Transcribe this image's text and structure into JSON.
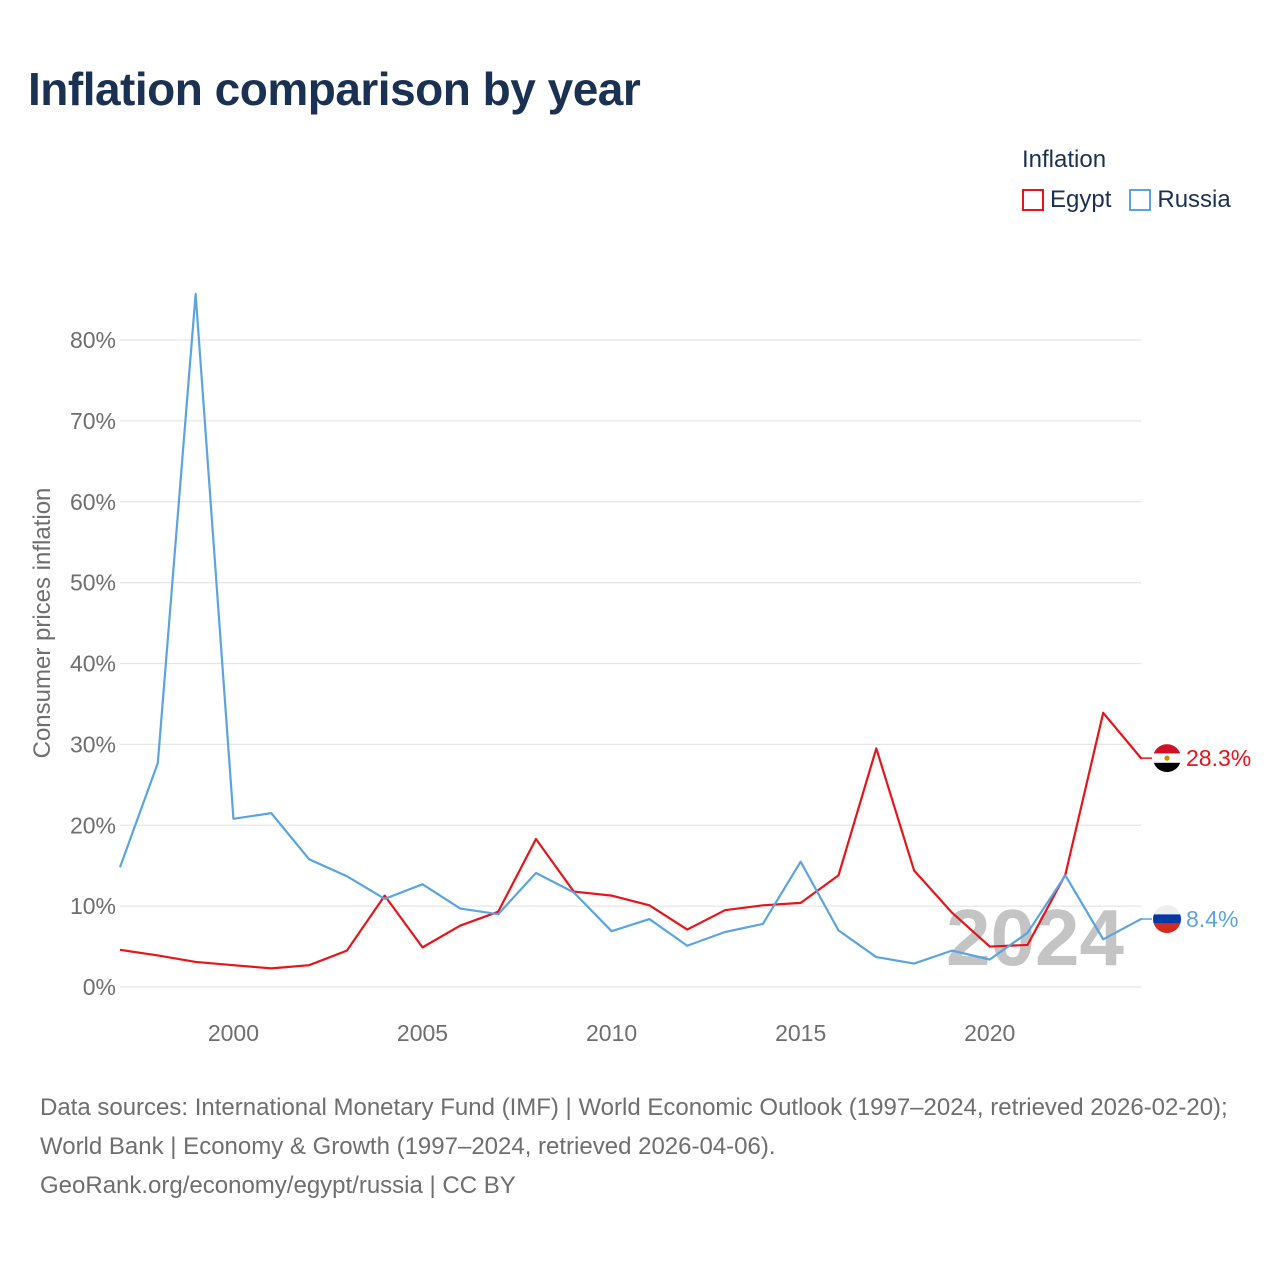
{
  "chart_data": {
    "type": "line",
    "title": "Inflation comparison by year",
    "xlabel": "",
    "ylabel": "Consumer prices inflation",
    "xlim": [
      1997,
      2024
    ],
    "ylim": [
      0,
      85
    ],
    "y_ticks": [
      0,
      10,
      20,
      30,
      40,
      50,
      60,
      70,
      80
    ],
    "y_tick_labels": [
      "0%",
      "10%",
      "20%",
      "30%",
      "40%",
      "50%",
      "60%",
      "70%",
      "80%"
    ],
    "x_ticks": [
      2000,
      2005,
      2010,
      2015,
      2020
    ],
    "x_tick_labels": [
      "2000",
      "2005",
      "2010",
      "2015",
      "2020"
    ],
    "grid": true,
    "legend_title": "Inflation",
    "legend_position": "top-right",
    "x": [
      1997,
      1998,
      1999,
      2000,
      2001,
      2002,
      2003,
      2004,
      2005,
      2006,
      2007,
      2008,
      2009,
      2010,
      2011,
      2012,
      2013,
      2014,
      2015,
      2016,
      2017,
      2018,
      2019,
      2020,
      2021,
      2022,
      2023,
      2024
    ],
    "series": [
      {
        "name": "Egypt",
        "color": "#e8141b",
        "end_label": "28.3%",
        "values": [
          4.6,
          3.9,
          3.1,
          2.7,
          2.3,
          2.7,
          4.5,
          11.3,
          4.9,
          7.6,
          9.3,
          18.3,
          11.8,
          11.3,
          10.1,
          7.1,
          9.5,
          10.1,
          10.4,
          13.8,
          29.5,
          14.4,
          9.2,
          5.0,
          5.2,
          13.9,
          33.9,
          28.3
        ],
        "flag": "egypt-flag-icon"
      },
      {
        "name": "Russia",
        "color": "#5ba4e1",
        "end_label": "8.4%",
        "values": [
          14.8,
          27.7,
          85.7,
          20.8,
          21.5,
          15.8,
          13.7,
          10.9,
          12.7,
          9.7,
          9.0,
          14.1,
          11.7,
          6.9,
          8.4,
          5.1,
          6.8,
          7.8,
          15.5,
          7.0,
          3.7,
          2.9,
          4.5,
          3.4,
          6.7,
          13.8,
          5.9,
          8.4
        ],
        "flag": "russia-flag-icon"
      }
    ],
    "annotations": [
      {
        "text": "2024",
        "role": "watermark-year"
      }
    ]
  },
  "source": {
    "line1": "Data sources: International Monetary Fund (IMF) | World Economic Outlook (1997–2024, retrieved 2026-02-20); World Bank | Economy & Growth (1997–2024, retrieved 2026-04-06).",
    "line2": "GeoRank.org/economy/egypt/russia | CC BY"
  }
}
